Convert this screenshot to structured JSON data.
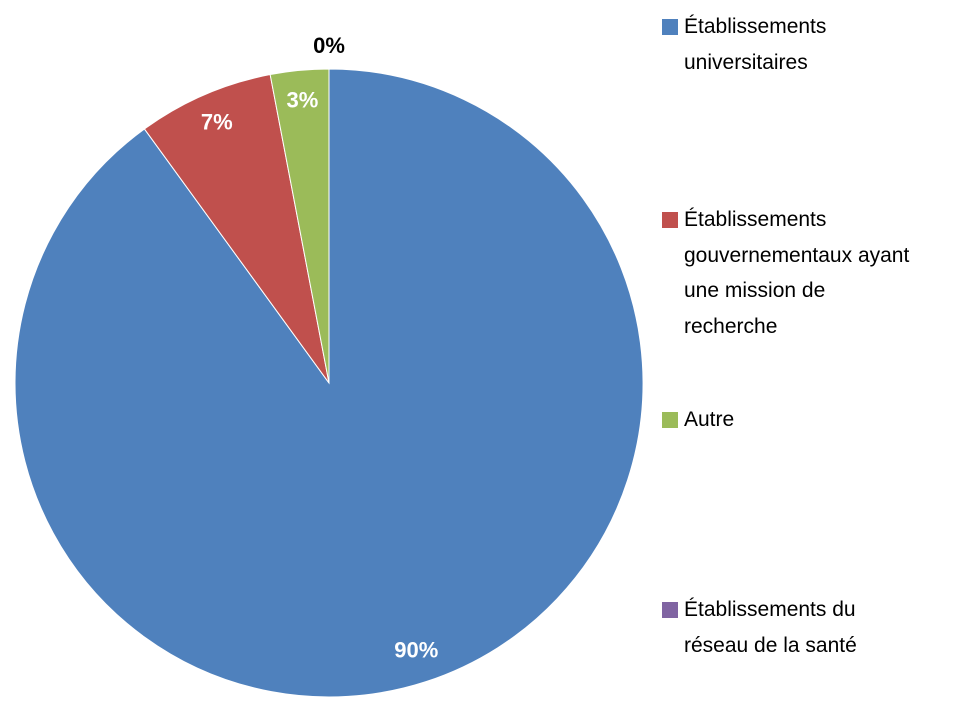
{
  "chart_data": {
    "type": "pie",
    "series": [
      {
        "name": "Établissements universitaires",
        "color": "#4f81bd",
        "values": [
          90
        ],
        "value_labels": [
          "90%"
        ]
      },
      {
        "name": "Établissements gouvernementaux ayant une mission de recherche",
        "color": "#c0504d",
        "values": [
          7
        ],
        "value_labels": [
          "7%"
        ]
      },
      {
        "name": "Autre",
        "color": "#9bbb59",
        "values": [
          3
        ],
        "value_labels": [
          "3%"
        ]
      },
      {
        "name": "Établissements du réseau de la santé",
        "color": "#8064a2",
        "values": [
          0
        ],
        "value_labels": [
          "0%"
        ]
      }
    ],
    "legend": "right"
  }
}
